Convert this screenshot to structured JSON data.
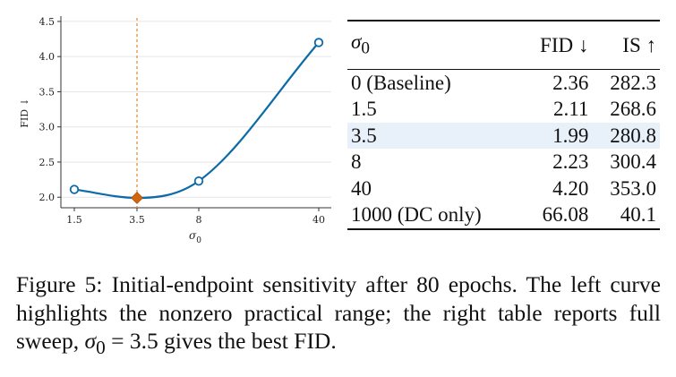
{
  "chart_data": {
    "type": "line",
    "ylabel": "FID ↓",
    "xlabel": "σ",
    "xlabel_sub": "0",
    "x_ticks": [
      "1.5",
      "3.5",
      "8",
      "40"
    ],
    "y_ticks": [
      "2.0",
      "2.5",
      "3.0",
      "3.5",
      "4.0",
      "4.5"
    ],
    "ylim": [
      1.85,
      4.55
    ],
    "x_scale": "categorical-spacing",
    "points": [
      {
        "x": "1.5",
        "y": 2.11,
        "marker": "circle"
      },
      {
        "x": "8",
        "y": 2.23,
        "marker": "circle"
      },
      {
        "x": "40",
        "y": 4.2,
        "marker": "circle"
      }
    ],
    "highlight": {
      "x": "3.5",
      "y": 1.99,
      "marker": "diamond",
      "color": "#d0670f"
    },
    "vline_x": "3.5",
    "line_color": "#0b6aa8",
    "vline_color": "#e8903a",
    "grid": "horizontal"
  },
  "table": {
    "headers": [
      "σ",
      "FID ↓",
      "IS ↑"
    ],
    "header_sub": "0",
    "rows": [
      [
        "0 (Baseline)",
        "2.36",
        "282.3"
      ],
      [
        "1.5",
        "2.11",
        "268.6"
      ],
      [
        "3.5",
        "1.99",
        "280.8"
      ],
      [
        "8",
        "2.23",
        "300.4"
      ],
      [
        "40",
        "4.20",
        "353.0"
      ],
      [
        "1000 (DC only)",
        "66.08",
        "40.1"
      ]
    ],
    "highlight_row": 2
  },
  "caption": {
    "part1": "Figure 5: Initial-endpoint sensitivity after 80 epochs. The left curve highlights the nonzero practical range; the right table reports full sweep, ",
    "sigma": "σ",
    "sigma_sub": "0",
    "eq": " = 3.5",
    "part2": " gives the best FID."
  }
}
